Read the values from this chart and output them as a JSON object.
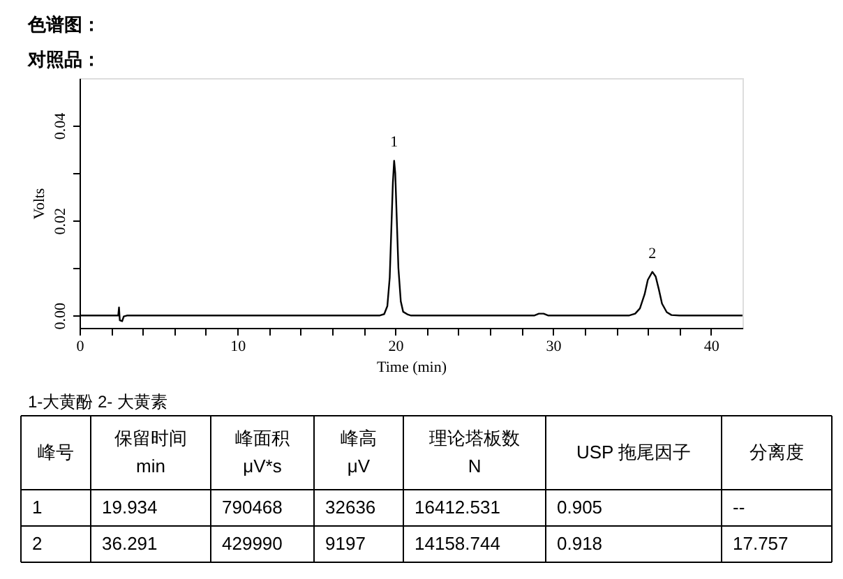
{
  "chart_data": {
    "type": "line",
    "title": "色谱图：",
    "subtitle": "对照品：",
    "xlabel": "Time (min)",
    "ylabel": "Volts",
    "xlim": [
      0,
      42
    ],
    "ylim": [
      -0.0026,
      0.05
    ],
    "xticks": [
      0,
      {
        "value": 2,
        "label": null
      },
      {
        "value": 4,
        "label": null
      },
      {
        "value": 6,
        "label": null
      },
      {
        "value": 8,
        "label": null
      },
      10,
      {
        "value": 12,
        "label": null
      },
      {
        "value": 14,
        "label": null
      },
      {
        "value": 16,
        "label": null
      },
      {
        "value": 18,
        "label": null
      },
      20,
      {
        "value": 22,
        "label": null
      },
      {
        "value": 24,
        "label": null
      },
      {
        "value": 26,
        "label": null
      },
      {
        "value": 28,
        "label": null
      },
      30,
      {
        "value": 32,
        "label": null
      },
      {
        "value": 34,
        "label": null
      },
      {
        "value": 36,
        "label": null
      },
      {
        "value": 38,
        "label": null
      },
      40
    ],
    "yticks": [
      {
        "value": 0,
        "label": "0.00"
      },
      {
        "value": 0.01,
        "label": null
      },
      {
        "value": 0.02,
        "label": "0.02"
      },
      {
        "value": 0.03,
        "label": null
      },
      {
        "value": 0.04,
        "label": "0.04"
      }
    ],
    "grid": false,
    "line_style": "solid",
    "marker": "none",
    "series": [
      {
        "color": "#000000",
        "x": [
          0,
          2.45,
          2.5,
          2.55,
          2.7,
          2.8,
          3,
          19.0,
          19.3,
          19.5,
          19.65,
          19.75,
          19.85,
          19.93,
          20.0,
          20.1,
          20.2,
          20.35,
          20.5,
          20.8,
          21,
          28.8,
          29.1,
          29.4,
          29.7,
          34.8,
          35.2,
          35.5,
          35.8,
          36.0,
          36.29,
          36.5,
          36.7,
          36.9,
          37.2,
          37.5,
          38,
          42
        ],
        "values": [
          0,
          0,
          0.0017,
          -0.001,
          -0.0012,
          -0.0002,
          0,
          0,
          0.0003,
          0.002,
          0.008,
          0.018,
          0.028,
          0.0326,
          0.03,
          0.02,
          0.01,
          0.003,
          0.0008,
          0.0002,
          0,
          0,
          0.0004,
          0.0004,
          0,
          0,
          0.0004,
          0.0015,
          0.0045,
          0.0075,
          0.0092,
          0.0082,
          0.0055,
          0.0025,
          0.0007,
          0.0001,
          0,
          0
        ]
      }
    ],
    "annotations": [
      {
        "text": "1",
        "x": 19.93,
        "y": 0.0326
      },
      {
        "text": "2",
        "x": 36.29,
        "y": 0.0092
      },
      "1-大黄酚       2- 大黄素",
      "峰号",
      "保留时间\nmin",
      "峰面积\nμV*s",
      "峰高\nμV",
      "理论塔板数\nN",
      "USP 拖尾因子",
      "分离度",
      "1",
      "19.934",
      "790468",
      "32636",
      "16412.531",
      "0.905",
      "--",
      "2",
      "36.291",
      "429990",
      "9197",
      "14158.744",
      "0.918",
      "17.757"
    ]
  }
}
